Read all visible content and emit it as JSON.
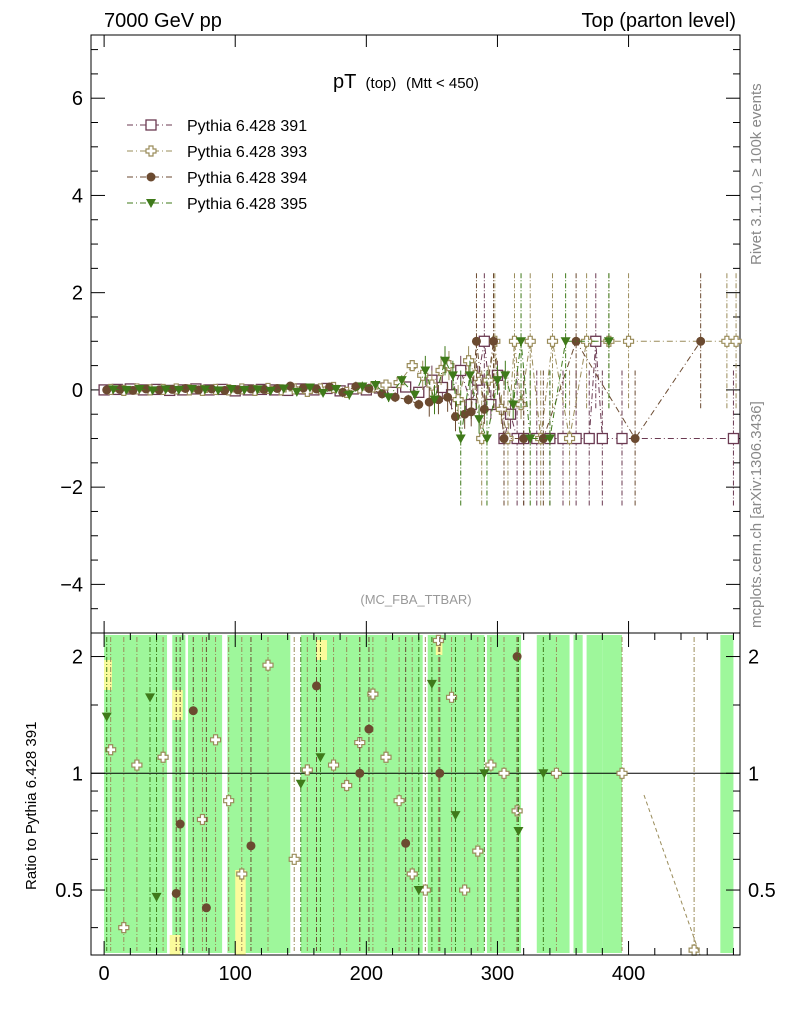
{
  "header": {
    "left": "7000 GeV pp",
    "right": "Top (parton level)"
  },
  "side_labels": {
    "right_top": "Rivet 3.1.10, ≥ 100k events",
    "right_bottom": "mcplots.cern.ch [arXiv:1306.3436]"
  },
  "chart_data": {
    "type": "scatter",
    "title_main": "pT",
    "title_sub1": "(top)",
    "title_sub2": "(Mtt < 450)",
    "watermark": "(MC_FBA_TTBAR)",
    "x_range": [
      -10,
      485
    ],
    "x_ticks": [
      0,
      100,
      200,
      300,
      400
    ],
    "top_panel": {
      "ylim": [
        -5,
        7.3
      ],
      "y_ticks": [
        -4,
        -2,
        0,
        2,
        4,
        6
      ]
    },
    "ratio_panel": {
      "ylabel": "Ratio to Pythia 6.428 391",
      "ylim": [
        0.34,
        2.3
      ],
      "log_y": true,
      "y_ticks": [
        0.5,
        1,
        2
      ],
      "reference": 1
    },
    "series": [
      {
        "name": "Pythia 6.428 391",
        "color": "#6b3a52",
        "marker": "open-square",
        "points": [
          [
            0,
            0
          ],
          [
            10,
            0.01
          ],
          [
            20,
            0.02
          ],
          [
            30,
            0
          ],
          [
            40,
            0.01
          ],
          [
            50,
            -0.01
          ],
          [
            60,
            0
          ],
          [
            70,
            0.02
          ],
          [
            80,
            0
          ],
          [
            90,
            0.01
          ],
          [
            100,
            -0.02
          ],
          [
            110,
            0
          ],
          [
            120,
            0.01
          ],
          [
            130,
            0
          ],
          [
            140,
            -0.01
          ],
          [
            150,
            0.02
          ],
          [
            160,
            0
          ],
          [
            170,
            0.03
          ],
          [
            180,
            -0.02
          ],
          [
            190,
            0.02
          ],
          [
            200,
            0
          ],
          [
            210,
            0.04
          ],
          [
            220,
            -0.05
          ],
          [
            230,
            0.06
          ],
          [
            240,
            -0.05
          ],
          [
            250,
            0.2
          ],
          [
            258,
            0.05
          ],
          [
            265,
            -0.1
          ],
          [
            272,
            0.4
          ],
          [
            280,
            -0.3
          ],
          [
            285,
            0.2
          ],
          [
            290,
            1
          ],
          [
            295,
            -0.3
          ],
          [
            300,
            0.3
          ],
          [
            305,
            -1
          ],
          [
            310,
            -0.5
          ],
          [
            315,
            -1
          ],
          [
            320,
            -1
          ],
          [
            330,
            -1
          ],
          [
            340,
            -1
          ],
          [
            350,
            -1
          ],
          [
            360,
            -1
          ],
          [
            370,
            -1
          ],
          [
            375,
            1
          ],
          [
            380,
            -1
          ],
          [
            395,
            -1
          ],
          [
            480,
            -1
          ]
        ]
      },
      {
        "name": "Pythia 6.428 393",
        "color": "#9a8c5a",
        "marker": "open-cross",
        "points": [
          [
            5,
            0.01
          ],
          [
            15,
            -0.01
          ],
          [
            25,
            0.02
          ],
          [
            35,
            0
          ],
          [
            45,
            0.01
          ],
          [
            55,
            0.02
          ],
          [
            65,
            0
          ],
          [
            75,
            -0.01
          ],
          [
            85,
            0.01
          ],
          [
            95,
            0
          ],
          [
            105,
            0.02
          ],
          [
            115,
            -0.01
          ],
          [
            125,
            0.03
          ],
          [
            135,
            0
          ],
          [
            145,
            0.02
          ],
          [
            155,
            -0.03
          ],
          [
            165,
            0.02
          ],
          [
            175,
            0.05
          ],
          [
            185,
            -0.05
          ],
          [
            195,
            0.04
          ],
          [
            205,
            0.06
          ],
          [
            215,
            0.1
          ],
          [
            225,
            0.15
          ],
          [
            235,
            0.5
          ],
          [
            243,
            0.3
          ],
          [
            250,
            0.1
          ],
          [
            257,
            0.4
          ],
          [
            263,
            0.5
          ],
          [
            270,
            -0.2
          ],
          [
            278,
            0.6
          ],
          [
            283,
            0.3
          ],
          [
            288,
            -1
          ],
          [
            293,
            0.2
          ],
          [
            298,
            1
          ],
          [
            303,
            -0.4
          ],
          [
            308,
            -1
          ],
          [
            313,
            1
          ],
          [
            318,
            -0.3
          ],
          [
            325,
            1
          ],
          [
            333,
            -1
          ],
          [
            342,
            1
          ],
          [
            355,
            -1
          ],
          [
            368,
            1
          ],
          [
            385,
            1
          ],
          [
            400,
            1
          ],
          [
            475,
            1
          ],
          [
            482,
            1
          ]
        ]
      },
      {
        "name": "Pythia 6.428 394",
        "color": "#6b4a30",
        "marker": "filled-circle",
        "points": [
          [
            2,
            0
          ],
          [
            12,
            0.01
          ],
          [
            22,
            -0.01
          ],
          [
            32,
            0.02
          ],
          [
            42,
            0
          ],
          [
            52,
            0.01
          ],
          [
            62,
            0.03
          ],
          [
            72,
            0
          ],
          [
            82,
            0.02
          ],
          [
            92,
            -0.01
          ],
          [
            102,
            0
          ],
          [
            112,
            0.02
          ],
          [
            122,
            0.01
          ],
          [
            132,
            0.03
          ],
          [
            142,
            0.08
          ],
          [
            152,
            0.04
          ],
          [
            162,
            0.02
          ],
          [
            172,
            0.06
          ],
          [
            182,
            -0.05
          ],
          [
            192,
            0.07
          ],
          [
            202,
            0.03
          ],
          [
            212,
            -0.08
          ],
          [
            222,
            -0.15
          ],
          [
            232,
            -0.2
          ],
          [
            240,
            -0.3
          ],
          [
            248,
            -0.25
          ],
          [
            255,
            -0.2
          ],
          [
            262,
            -0.15
          ],
          [
            268,
            -0.55
          ],
          [
            275,
            -0.5
          ],
          [
            280,
            -0.45
          ],
          [
            284,
            1
          ],
          [
            290,
            -0.4
          ],
          [
            297,
            1
          ],
          [
            305,
            -1
          ],
          [
            320,
            -1
          ],
          [
            335,
            -1
          ],
          [
            360,
            1
          ],
          [
            405,
            -1
          ],
          [
            455,
            1
          ]
        ]
      },
      {
        "name": "Pythia 6.428 395",
        "color": "#3f7a1a",
        "marker": "filled-triangle-down",
        "points": [
          [
            7,
            0.01
          ],
          [
            17,
            0
          ],
          [
            27,
            0.02
          ],
          [
            37,
            -0.01
          ],
          [
            47,
            0.01
          ],
          [
            57,
            0
          ],
          [
            67,
            0.02
          ],
          [
            77,
            0.01
          ],
          [
            87,
            -0.01
          ],
          [
            97,
            0.02
          ],
          [
            107,
            0
          ],
          [
            117,
            0.01
          ],
          [
            127,
            -0.02
          ],
          [
            137,
            0.03
          ],
          [
            147,
            -0.04
          ],
          [
            157,
            0.05
          ],
          [
            167,
            -0.06
          ],
          [
            177,
            0.02
          ],
          [
            187,
            -0.1
          ],
          [
            197,
            0.07
          ],
          [
            207,
            0.1
          ],
          [
            217,
            -0.15
          ],
          [
            227,
            0.2
          ],
          [
            237,
            -0.1
          ],
          [
            245,
            0.4
          ],
          [
            252,
            -0.2
          ],
          [
            260,
            0.6
          ],
          [
            266,
            0.3
          ],
          [
            272,
            -1
          ],
          [
            279,
            0.3
          ],
          [
            286,
            -0.6
          ],
          [
            292,
            -1
          ],
          [
            300,
            0.2
          ],
          [
            306,
            0.3
          ],
          [
            312,
            -0.3
          ],
          [
            318,
            1
          ],
          [
            325,
            -1
          ],
          [
            340,
            -1
          ],
          [
            352,
            1
          ],
          [
            385,
            1
          ]
        ]
      }
    ],
    "ratio_points": [
      {
        "series": 1,
        "points": [
          [
            5,
            1.15
          ],
          [
            15,
            0.4
          ],
          [
            25,
            1.05
          ],
          [
            45,
            1.1
          ],
          [
            75,
            0.76
          ],
          [
            85,
            1.22
          ],
          [
            95,
            0.85
          ],
          [
            105,
            0.55
          ],
          [
            125,
            1.9
          ],
          [
            145,
            0.6
          ],
          [
            155,
            1.02
          ],
          [
            175,
            1.05
          ],
          [
            185,
            0.93
          ],
          [
            195,
            1.2
          ],
          [
            205,
            1.6
          ],
          [
            215,
            1.1
          ],
          [
            225,
            0.85
          ],
          [
            235,
            0.55
          ],
          [
            245,
            0.5
          ],
          [
            255,
            2.2
          ],
          [
            265,
            1.57
          ],
          [
            275,
            0.5
          ],
          [
            285,
            0.63
          ],
          [
            295,
            1.05
          ],
          [
            305,
            1.0
          ],
          [
            315,
            0.8
          ],
          [
            345,
            1.0
          ],
          [
            395,
            1.0
          ],
          [
            450,
            0.35
          ]
        ]
      },
      {
        "series": 2,
        "points": [
          [
            55,
            0.49
          ],
          [
            58,
            0.74
          ],
          [
            68,
            1.45
          ],
          [
            78,
            0.45
          ],
          [
            112,
            0.65
          ],
          [
            162,
            1.68
          ],
          [
            195,
            1.0
          ],
          [
            202,
            1.3
          ],
          [
            230,
            0.66
          ],
          [
            256,
            1.0
          ],
          [
            315,
            2.0
          ]
        ]
      },
      {
        "series": 3,
        "points": [
          [
            2,
            1.4
          ],
          [
            35,
            1.57
          ],
          [
            40,
            0.48
          ],
          [
            150,
            0.94
          ],
          [
            165,
            1.1
          ],
          [
            240,
            0.5
          ],
          [
            250,
            1.7
          ],
          [
            268,
            0.78
          ],
          [
            290,
            1.0
          ],
          [
            316,
            0.71
          ],
          [
            335,
            1.0
          ]
        ]
      }
    ]
  }
}
